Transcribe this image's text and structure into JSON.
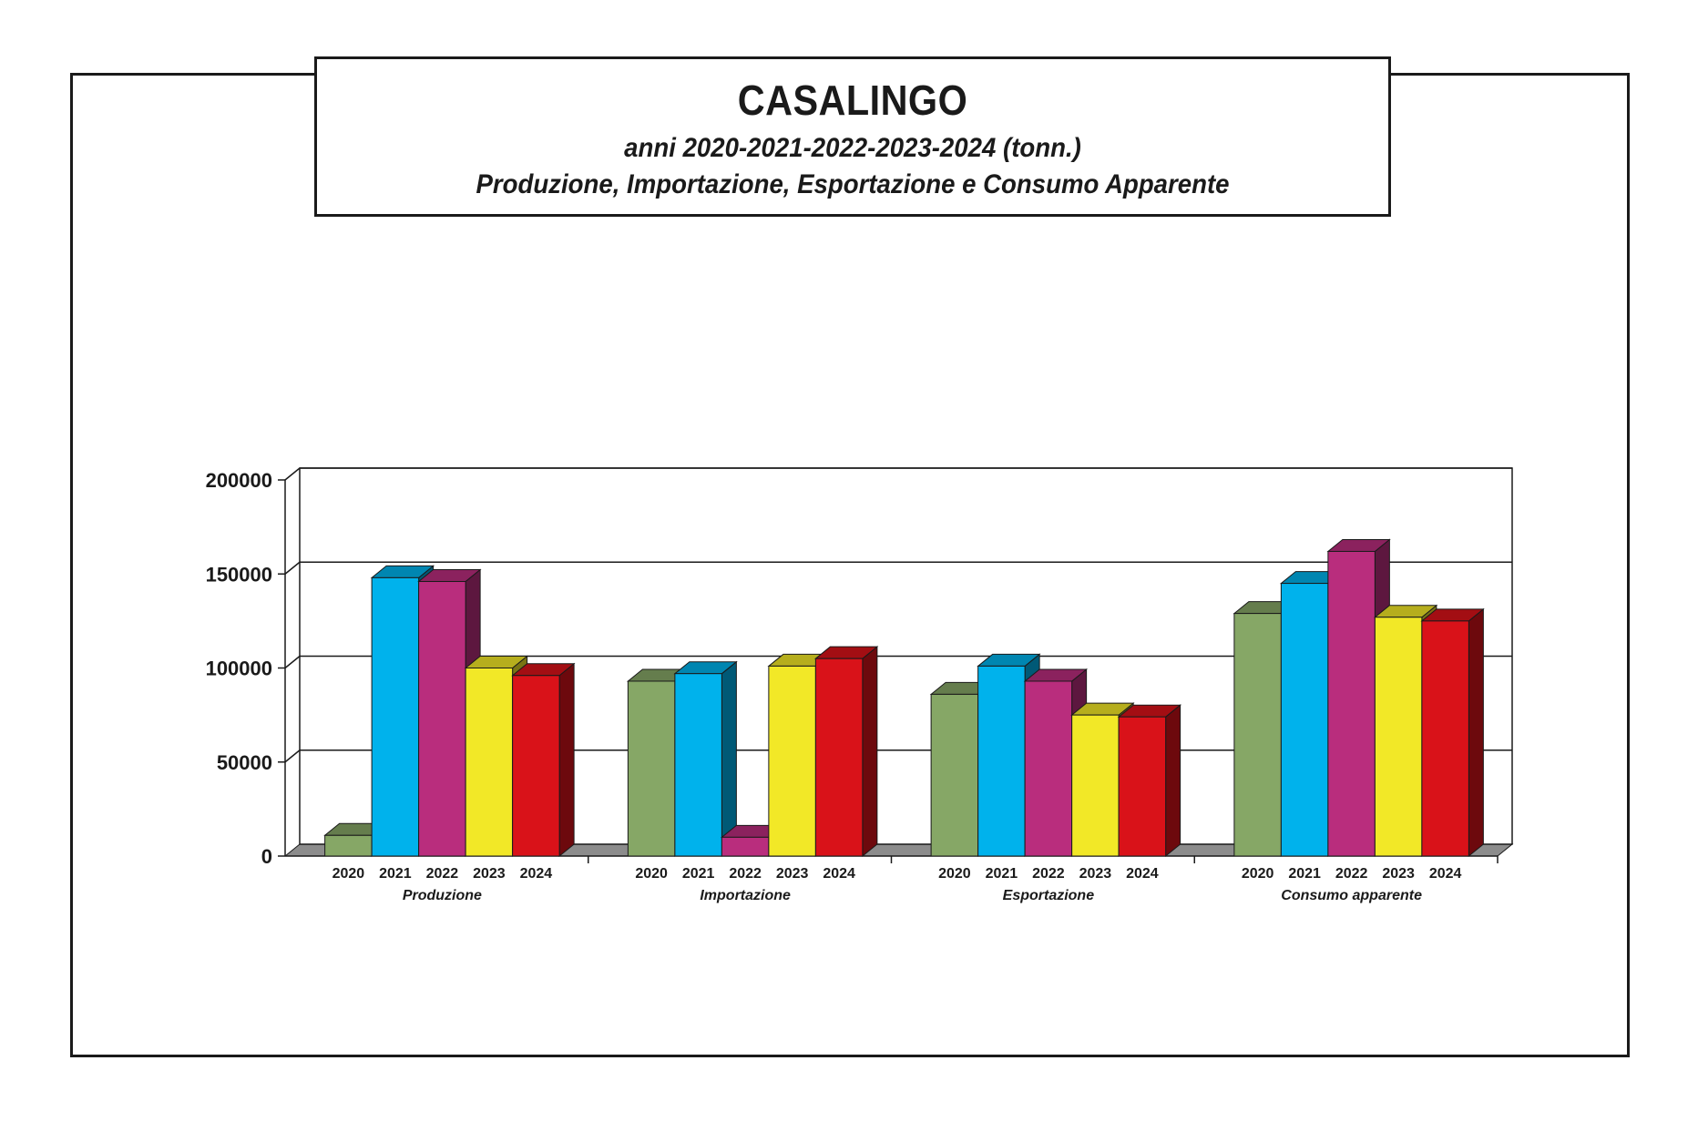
{
  "header": {
    "title": "CASALINGO",
    "subtitle_line1": "anni 2020-2021-2022-2023-2024 (tonn.)",
    "subtitle_line2": "Produzione, Importazione, Esportazione e Consumo Apparente"
  },
  "chart_data": {
    "type": "bar",
    "title": "CASALINGO",
    "subtitle": "anni 2020-2021-2022-2023-2024 (tonn.)",
    "categories": [
      "Produzione",
      "Importazione",
      "Esportazione",
      "Consumo apparente"
    ],
    "series": [
      {
        "name": "2020",
        "values": [
          11000,
          93000,
          86000,
          129000
        ],
        "color": "#86a766"
      },
      {
        "name": "2021",
        "values": [
          148000,
          97000,
          101000,
          145000
        ],
        "color": "#00b2ec"
      },
      {
        "name": "2022",
        "values": [
          146000,
          10000,
          93000,
          162000
        ],
        "color": "#b92d7d"
      },
      {
        "name": "2023",
        "values": [
          100000,
          101000,
          75000,
          127000
        ],
        "color": "#f2e827"
      },
      {
        "name": "2024",
        "values": [
          96000,
          105000,
          74000,
          125000
        ],
        "color": "#d91219"
      }
    ],
    "yticks": [
      "0",
      "50000",
      "100000",
      "150000",
      "200000"
    ],
    "ylim": [
      0,
      200000
    ],
    "grid": true,
    "style": "3d-columns"
  }
}
